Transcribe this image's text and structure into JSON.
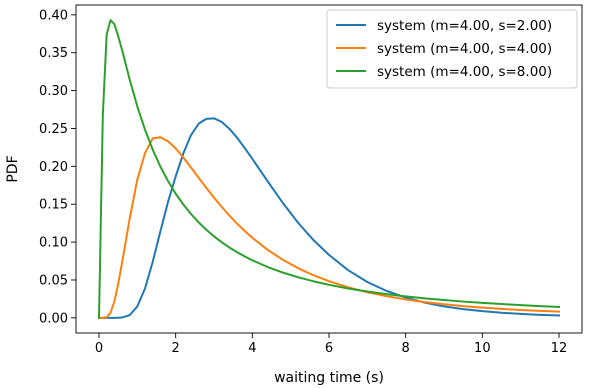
{
  "chart_data": {
    "type": "line",
    "title": "",
    "xlabel": "waiting time (s)",
    "ylabel": "PDF",
    "xlim": [
      -0.6,
      12.6
    ],
    "ylim": [
      -0.02,
      0.413
    ],
    "xticks": [
      0,
      2,
      4,
      6,
      8,
      10,
      12
    ],
    "xtick_labels": [
      "0",
      "2",
      "4",
      "6",
      "8",
      "10",
      "12"
    ],
    "yticks": [
      0.0,
      0.05,
      0.1,
      0.15,
      0.2,
      0.25,
      0.3,
      0.35,
      0.4
    ],
    "ytick_labels": [
      "0.00",
      "0.05",
      "0.10",
      "0.15",
      "0.20",
      "0.25",
      "0.30",
      "0.35",
      "0.40"
    ],
    "grid": false,
    "legend_position": "top-right",
    "x": [
      0.0,
      0.1,
      0.2,
      0.3,
      0.4,
      0.5,
      0.6,
      0.8,
      1.0,
      1.2,
      1.4,
      1.6,
      1.8,
      2.0,
      2.2,
      2.4,
      2.6,
      2.8,
      3.0,
      3.2,
      3.4,
      3.6,
      3.8,
      4.0,
      4.4,
      4.8,
      5.2,
      5.6,
      6.0,
      6.5,
      7.0,
      7.5,
      8.0,
      8.5,
      9.0,
      9.5,
      10.0,
      10.5,
      11.0,
      11.5,
      12.0
    ],
    "series": [
      {
        "name": "system (m=4.00, s=2.00)",
        "color": "#1f77b4",
        "values": [
          0.0,
          0.0,
          0.0,
          0.0,
          0.0,
          0.0001,
          0.0004,
          0.0036,
          0.0151,
          0.0387,
          0.0737,
          0.1139,
          0.1529,
          0.1866,
          0.2171,
          0.2412,
          0.2564,
          0.2627,
          0.2634,
          0.2587,
          0.2497,
          0.2379,
          0.2243,
          0.2099,
          0.1802,
          0.1514,
          0.1252,
          0.1024,
          0.0831,
          0.0629,
          0.0473,
          0.0356,
          0.0268,
          0.0201,
          0.0152,
          0.0115,
          0.0088,
          0.0067,
          0.0052,
          0.004,
          0.0031
        ]
      },
      {
        "name": "system (m=4.00, s=4.00)",
        "color": "#ff7f0e",
        "values": [
          0.0,
          0.0,
          0.0008,
          0.0068,
          0.0215,
          0.0444,
          0.0723,
          0.131,
          0.1826,
          0.2173,
          0.2369,
          0.2384,
          0.2331,
          0.2237,
          0.2117,
          0.1985,
          0.1849,
          0.1716,
          0.1587,
          0.1465,
          0.1351,
          0.1245,
          0.1147,
          0.1057,
          0.0898,
          0.0765,
          0.0654,
          0.0561,
          0.0484,
          0.0403,
          0.0338,
          0.0286,
          0.0243,
          0.0208,
          0.0179,
          0.0155,
          0.0135,
          0.0118,
          0.0104,
          0.0092,
          0.0082
        ]
      },
      {
        "name": "system (m=4.00, s=8.00)",
        "color": "#2ca02c",
        "values": [
          0.0,
          0.268,
          0.374,
          0.393,
          0.388,
          0.372,
          0.354,
          0.3147,
          0.279,
          0.2484,
          0.2222,
          0.1998,
          0.1806,
          0.164,
          0.1496,
          0.1371,
          0.126,
          0.1163,
          0.1076,
          0.0999,
          0.0929,
          0.0867,
          0.0811,
          0.0759,
          0.0671,
          0.0597,
          0.0535,
          0.0482,
          0.0436,
          0.0388,
          0.0348,
          0.0313,
          0.0283,
          0.0257,
          0.0235,
          0.0215,
          0.0198,
          0.0182,
          0.0168,
          0.0155,
          0.0144
        ]
      }
    ]
  }
}
